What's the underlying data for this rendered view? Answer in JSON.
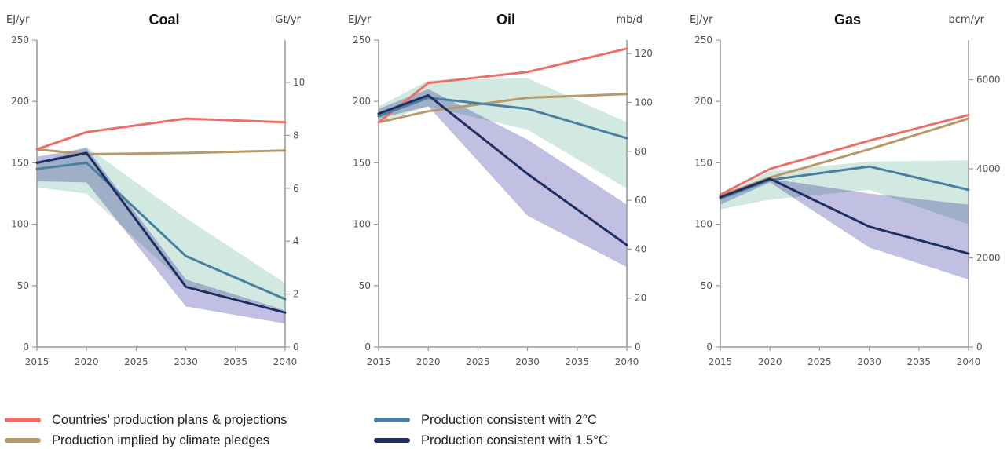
{
  "colors": {
    "plans": "#ec6f69",
    "pledges": "#b7996a",
    "two_deg": "#4a809e",
    "one_five": "#1f2f63",
    "band_two": "#cfe8df",
    "band_one_five": "#b7b5dd",
    "band_overlap": "#9fb8cf"
  },
  "legend": [
    {
      "key": "plans",
      "label": "Countries' production plans & projections"
    },
    {
      "key": "pledges",
      "label": "Production implied by climate pledges"
    },
    {
      "key": "two_deg",
      "label": "Production consistent with 2°C"
    },
    {
      "key": "one_five",
      "label": "Production consistent with 1.5°C"
    }
  ],
  "chart_data": [
    {
      "type": "line",
      "title": "Coal",
      "ylabel": "EJ/yr",
      "y2label": "Gt/yr",
      "x": [
        2015,
        2020,
        2030,
        2040
      ],
      "xlim": [
        2015,
        2040
      ],
      "xticks": [
        2015,
        2020,
        2025,
        2030,
        2035,
        2040
      ],
      "ylim": [
        0,
        250
      ],
      "yticks": [
        0,
        50,
        100,
        150,
        200,
        250
      ],
      "y2lim": [
        0,
        11.6
      ],
      "y2ticks": [
        0,
        2,
        4,
        6,
        8,
        10
      ],
      "series": [
        {
          "name": "Countries' production plans & projections",
          "key": "plans",
          "values": [
            161,
            175,
            186,
            183
          ]
        },
        {
          "name": "Production implied by climate pledges",
          "key": "pledges",
          "values": [
            161,
            157,
            158,
            160
          ]
        },
        {
          "name": "Production consistent with 2°C",
          "key": "two_deg",
          "values": [
            145,
            150,
            74,
            39
          ]
        },
        {
          "name": "Production consistent with 1.5°C",
          "key": "one_five",
          "values": [
            150,
            158,
            49,
            28
          ]
        }
      ],
      "bands": [
        {
          "key": "two_deg",
          "upper": [
            150,
            163,
            105,
            52
          ],
          "lower": [
            130,
            125,
            50,
            30
          ]
        },
        {
          "key": "one_five",
          "upper": [
            155,
            162,
            55,
            30
          ],
          "lower": [
            135,
            134,
            33,
            19
          ]
        }
      ]
    },
    {
      "type": "line",
      "title": "Oil",
      "ylabel": "EJ/yr",
      "y2label": "mb/d",
      "x": [
        2015,
        2020,
        2030,
        2040
      ],
      "xlim": [
        2015,
        2040
      ],
      "xticks": [
        2015,
        2020,
        2025,
        2030,
        2035,
        2040
      ],
      "ylim": [
        0,
        250
      ],
      "yticks": [
        0,
        50,
        100,
        150,
        200,
        250
      ],
      "y2lim": [
        0,
        125.5
      ],
      "y2ticks": [
        0,
        20,
        40,
        60,
        80,
        100,
        120
      ],
      "series": [
        {
          "name": "Countries' production plans & projections",
          "key": "plans",
          "values": [
            183,
            215,
            224,
            243
          ]
        },
        {
          "name": "Production implied by climate pledges",
          "key": "pledges",
          "values": [
            183,
            192,
            203,
            206
          ]
        },
        {
          "name": "Production consistent with 2°C",
          "key": "two_deg",
          "values": [
            188,
            203,
            194,
            170
          ]
        },
        {
          "name": "Production consistent with 1.5°C",
          "key": "one_five",
          "values": [
            190,
            205,
            141,
            83
          ]
        }
      ],
      "bands": [
        {
          "key": "two_deg",
          "upper": [
            196,
            217,
            219,
            183
          ],
          "lower": [
            183,
            196,
            177,
            129
          ]
        },
        {
          "key": "one_five",
          "upper": [
            194,
            210,
            169,
            116
          ],
          "lower": [
            186,
            196,
            107,
            65
          ]
        }
      ]
    },
    {
      "type": "line",
      "title": "Gas",
      "ylabel": "EJ/yr",
      "y2label": "bcm/yr",
      "x": [
        2015,
        2020,
        2030,
        2040
      ],
      "xlim": [
        2015,
        2040
      ],
      "xticks": [
        2015,
        2020,
        2025,
        2030,
        2035,
        2040
      ],
      "ylim": [
        0,
        250
      ],
      "yticks": [
        0,
        50,
        100,
        150,
        200,
        250
      ],
      "y2lim": [
        0,
        6890
      ],
      "y2ticks": [
        0,
        2000,
        4000,
        6000
      ],
      "series": [
        {
          "name": "Countries' production plans & projections",
          "key": "plans",
          "values": [
            124,
            145,
            168,
            189
          ]
        },
        {
          "name": "Production implied by climate pledges",
          "key": "pledges",
          "values": [
            123,
            138,
            161,
            186
          ]
        },
        {
          "name": "Production consistent with 2°C",
          "key": "two_deg",
          "values": [
            121,
            136,
            147,
            128
          ]
        },
        {
          "name": "Production consistent with 1.5°C",
          "key": "one_five",
          "values": [
            122,
            137,
            98,
            76
          ]
        }
      ],
      "bands": [
        {
          "key": "two_deg",
          "upper": [
            123,
            143,
            151,
            152
          ],
          "lower": [
            112,
            120,
            128,
            100
          ]
        },
        {
          "key": "one_five",
          "upper": [
            125,
            137,
            125,
            116
          ],
          "lower": [
            116,
            134,
            81,
            55
          ]
        }
      ]
    }
  ]
}
